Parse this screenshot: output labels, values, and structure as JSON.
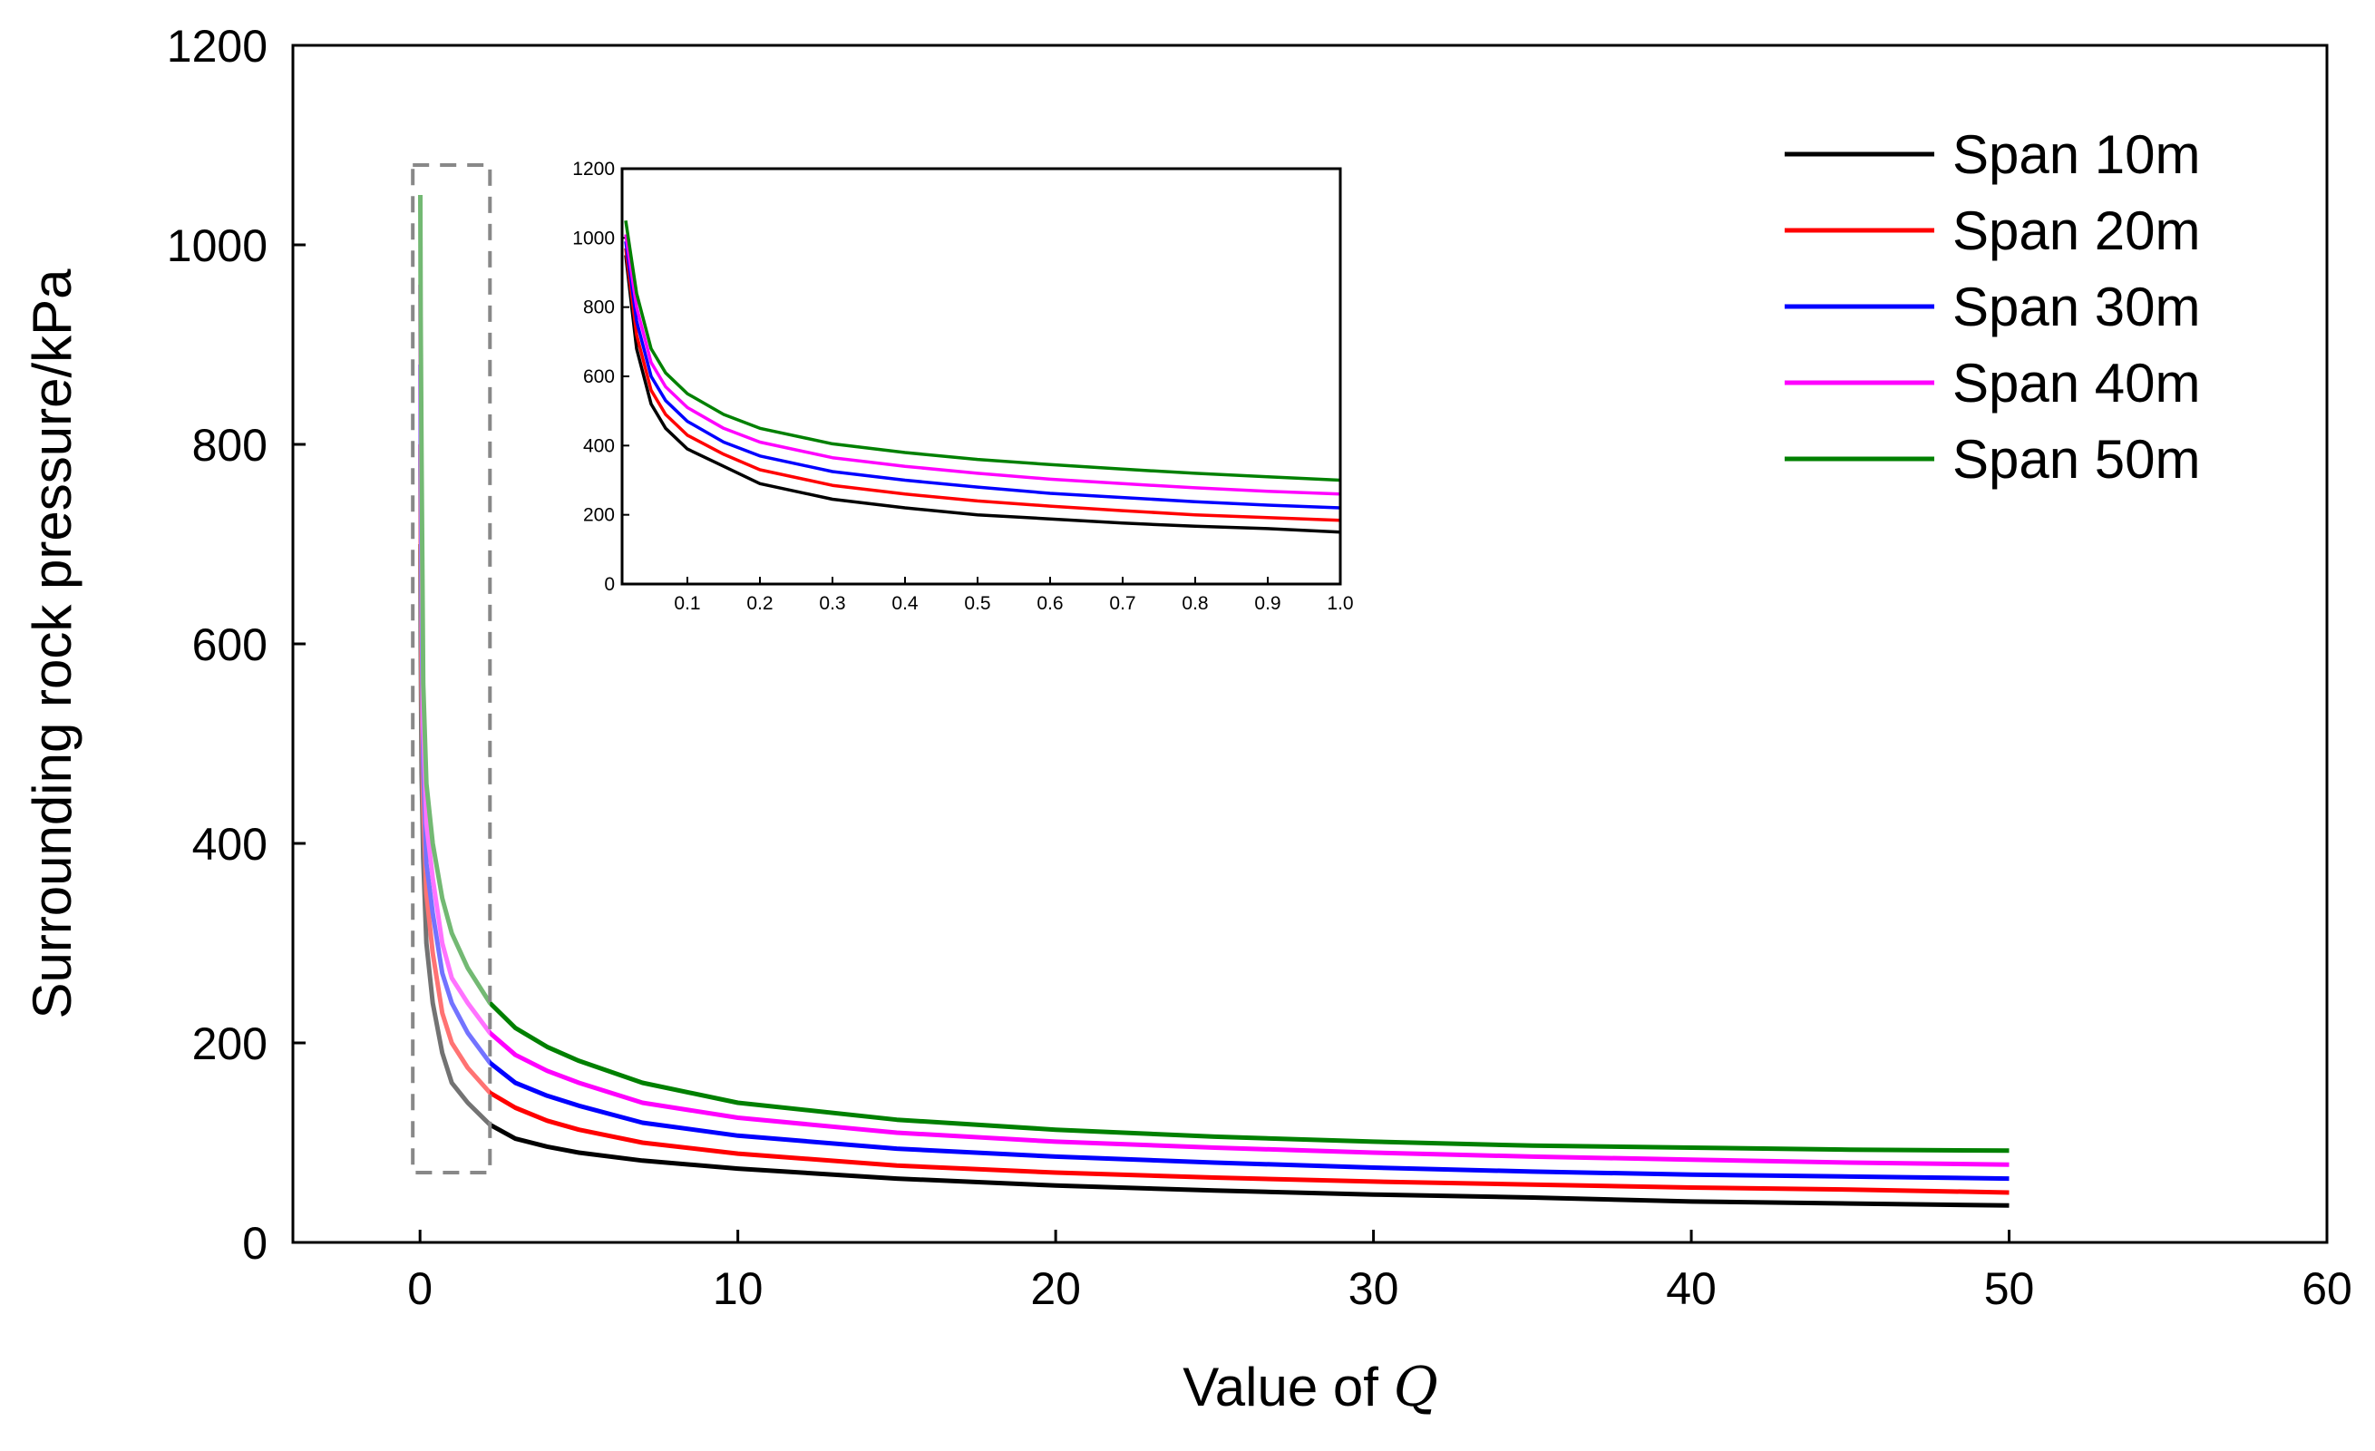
{
  "chart_data": [
    {
      "type": "line",
      "name": "main",
      "title": "",
      "xlabel_prefix": "Value of ",
      "xlabel_var": "Q",
      "ylabel": "Surrounding rock pressure/kPa",
      "xlim": [
        -4,
        60
      ],
      "ylim": [
        0,
        1200
      ],
      "xticks": [
        0,
        10,
        20,
        30,
        40,
        50,
        60
      ],
      "yticks": [
        0,
        200,
        400,
        600,
        800,
        1000,
        1200
      ],
      "xtick_labels": [
        "0",
        "10",
        "20",
        "30",
        "40",
        "50",
        "60"
      ],
      "ytick_labels": [
        "0",
        "200",
        "400",
        "600",
        "800",
        "1000",
        "1200"
      ],
      "legend_position": "top-right",
      "highlight_box_x": [
        0,
        2.2
      ],
      "highlight_box_y": [
        70,
        1080
      ],
      "series": [
        {
          "name": "Span 10m",
          "color": "#000000",
          "x": [
            0.008,
            0.02,
            0.05,
            0.1,
            0.2,
            0.4,
            0.7,
            1,
            1.5,
            2.2,
            3,
            4,
            5,
            7,
            10,
            15,
            20,
            25,
            30,
            35,
            40,
            45,
            50
          ],
          "values": [
            700,
            600,
            470,
            385,
            300,
            240,
            190,
            160,
            140,
            118,
            104,
            96,
            90,
            82,
            74,
            64,
            57,
            52,
            48,
            45,
            41,
            39,
            37
          ]
        },
        {
          "name": "Span 20m",
          "color": "#ff0000",
          "x": [
            0.008,
            0.02,
            0.05,
            0.1,
            0.2,
            0.4,
            0.7,
            1,
            1.5,
            2.2,
            3,
            4,
            5,
            7,
            10,
            15,
            20,
            25,
            30,
            35,
            40,
            45,
            50
          ],
          "values": [
            800,
            700,
            560,
            440,
            350,
            290,
            230,
            200,
            175,
            150,
            135,
            122,
            113,
            100,
            89,
            77,
            70,
            65,
            61,
            58,
            55,
            53,
            50
          ]
        },
        {
          "name": "Span 30m",
          "color": "#0000ff",
          "x": [
            0.008,
            0.02,
            0.05,
            0.1,
            0.2,
            0.4,
            0.7,
            1,
            1.5,
            2.2,
            3,
            4,
            5,
            7,
            10,
            15,
            20,
            25,
            30,
            35,
            40,
            45,
            50
          ],
          "values": [
            880,
            780,
            640,
            480,
            380,
            330,
            270,
            240,
            210,
            180,
            160,
            147,
            137,
            120,
            107,
            94,
            86,
            80,
            75,
            71,
            68,
            66,
            64
          ]
        },
        {
          "name": "Span 40m",
          "color": "#ff00ff",
          "x": [
            0.008,
            0.02,
            0.05,
            0.1,
            0.2,
            0.4,
            0.7,
            1,
            1.5,
            2.2,
            3,
            4,
            5,
            7,
            10,
            15,
            20,
            25,
            30,
            35,
            40,
            45,
            50
          ],
          "values": [
            960,
            860,
            720,
            520,
            420,
            365,
            300,
            265,
            240,
            210,
            188,
            172,
            160,
            140,
            125,
            110,
            101,
            95,
            90,
            86,
            83,
            80,
            78
          ]
        },
        {
          "name": "Span 50m",
          "color": "#008000",
          "x": [
            0.008,
            0.02,
            0.05,
            0.1,
            0.2,
            0.4,
            0.7,
            1,
            1.5,
            2.2,
            3,
            4,
            5,
            7,
            10,
            15,
            20,
            25,
            30,
            35,
            40,
            45,
            50
          ],
          "values": [
            1050,
            930,
            780,
            560,
            460,
            400,
            345,
            310,
            275,
            240,
            215,
            196,
            182,
            160,
            140,
            123,
            113,
            106,
            101,
            97,
            95,
            93,
            92
          ]
        }
      ]
    },
    {
      "type": "line",
      "name": "inset",
      "title": "",
      "xlim": [
        0.01,
        1.0
      ],
      "ylim": [
        0,
        1200
      ],
      "xticks": [
        0.1,
        0.2,
        0.3,
        0.4,
        0.5,
        0.6,
        0.7,
        0.8,
        0.9,
        1.0
      ],
      "yticks": [
        0,
        200,
        400,
        600,
        800,
        1000,
        1200
      ],
      "xtick_labels": [
        "0.1",
        "0.2",
        "0.3",
        "0.4",
        "0.5",
        "0.6",
        "0.7",
        "0.8",
        "0.9",
        "1.0"
      ],
      "ytick_labels": [
        "0",
        "200",
        "400",
        "600",
        "800",
        "1000",
        "1200"
      ],
      "series": [
        {
          "name": "Span 10m",
          "color": "#000000",
          "x": [
            0.015,
            0.03,
            0.05,
            0.07,
            0.1,
            0.15,
            0.2,
            0.3,
            0.4,
            0.5,
            0.6,
            0.7,
            0.8,
            0.9,
            1.0
          ],
          "values": [
            950,
            680,
            520,
            450,
            390,
            340,
            290,
            245,
            220,
            200,
            188,
            176,
            167,
            160,
            150
          ]
        },
        {
          "name": "Span 20m",
          "color": "#ff0000",
          "x": [
            0.015,
            0.03,
            0.05,
            0.07,
            0.1,
            0.15,
            0.2,
            0.3,
            0.4,
            0.5,
            0.6,
            0.7,
            0.8,
            0.9,
            1.0
          ],
          "values": [
            970,
            720,
            560,
            490,
            430,
            375,
            330,
            285,
            260,
            240,
            225,
            212,
            200,
            192,
            184
          ]
        },
        {
          "name": "Span 30m",
          "color": "#0000ff",
          "x": [
            0.015,
            0.03,
            0.05,
            0.07,
            0.1,
            0.15,
            0.2,
            0.3,
            0.4,
            0.5,
            0.6,
            0.7,
            0.8,
            0.9,
            1.0
          ],
          "values": [
            990,
            760,
            600,
            530,
            470,
            410,
            370,
            325,
            300,
            280,
            262,
            250,
            238,
            228,
            220
          ]
        },
        {
          "name": "Span 40m",
          "color": "#ff00ff",
          "x": [
            0.015,
            0.03,
            0.05,
            0.07,
            0.1,
            0.15,
            0.2,
            0.3,
            0.4,
            0.5,
            0.6,
            0.7,
            0.8,
            0.9,
            1.0
          ],
          "values": [
            1010,
            800,
            640,
            570,
            510,
            450,
            410,
            365,
            340,
            320,
            303,
            290,
            278,
            268,
            260
          ]
        },
        {
          "name": "Span 50m",
          "color": "#008000",
          "x": [
            0.015,
            0.03,
            0.05,
            0.07,
            0.1,
            0.15,
            0.2,
            0.3,
            0.4,
            0.5,
            0.6,
            0.7,
            0.8,
            0.9,
            1.0
          ],
          "values": [
            1050,
            840,
            680,
            610,
            550,
            490,
            450,
            405,
            380,
            360,
            345,
            332,
            320,
            310,
            300
          ]
        }
      ]
    }
  ]
}
